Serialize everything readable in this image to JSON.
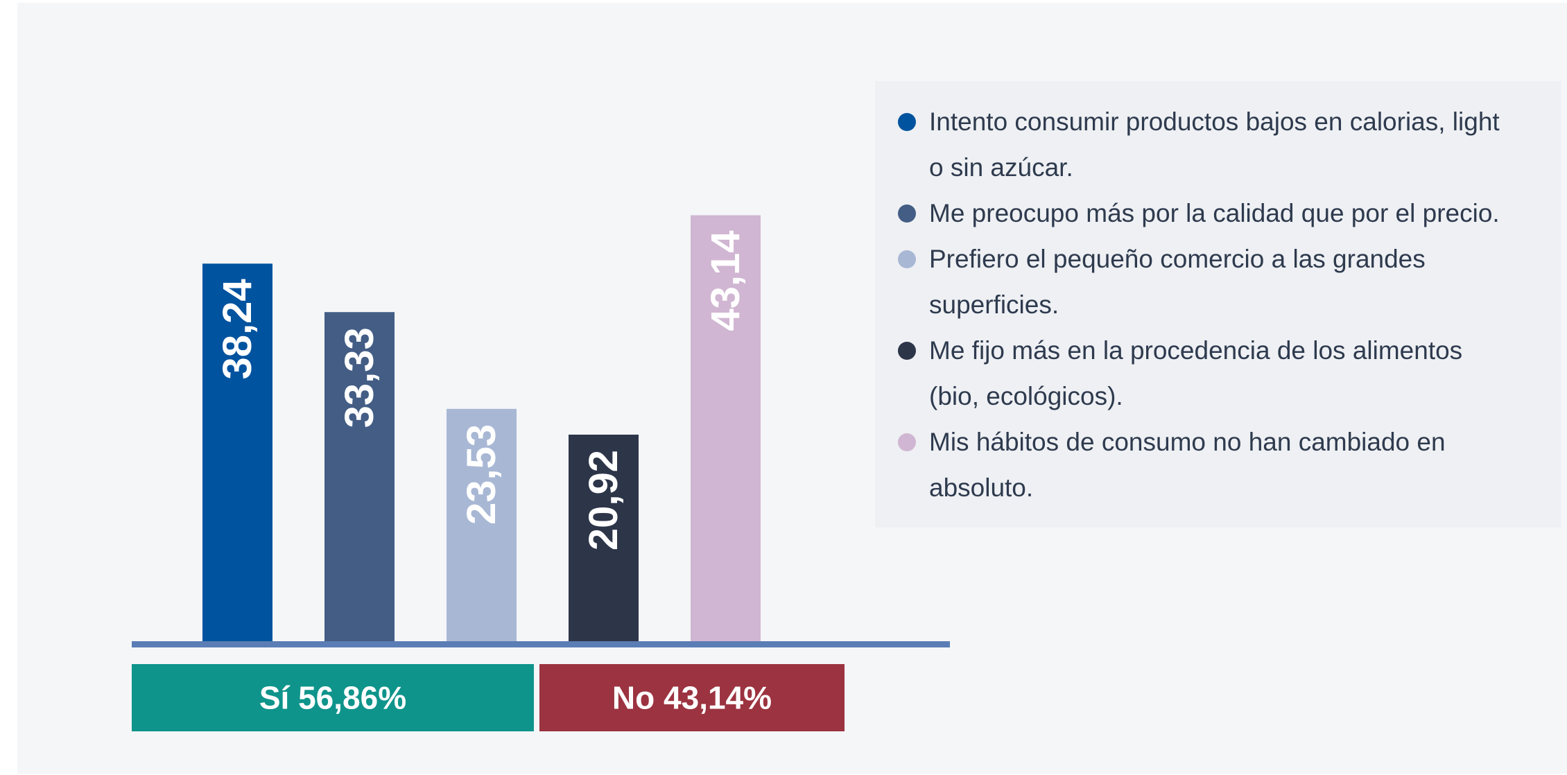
{
  "chart_data": {
    "type": "bar",
    "categories": [
      "Intento consumir productos bajos en calorias, light o sin azúcar.",
      "Me preocupo más por la calidad que por el precio.",
      "Prefiero el pequeño comercio a las grandes superficies.",
      "Me fijo más en la procedencia de los alimentos (bio, ecológicos).",
      "Mis hábitos de consumo no han cambiado en absoluto."
    ],
    "values": [
      38.24,
      33.33,
      23.53,
      20.92,
      43.14
    ],
    "value_labels": [
      "38,24",
      "33,33",
      "23,53",
      "20,92",
      "43,14"
    ],
    "colors": [
      "#00539f",
      "#435d85",
      "#a8b7d4",
      "#2d3549",
      "#d0b6d2"
    ],
    "ylim": [
      0,
      45
    ],
    "legend": "right",
    "split": [
      {
        "name": "Sí",
        "value": 56.86,
        "value_label": "56,86%",
        "color": "#0e948b"
      },
      {
        "name": "No",
        "value": 43.14,
        "value_label": "43,14%",
        "color": "#9c3340"
      }
    ]
  }
}
